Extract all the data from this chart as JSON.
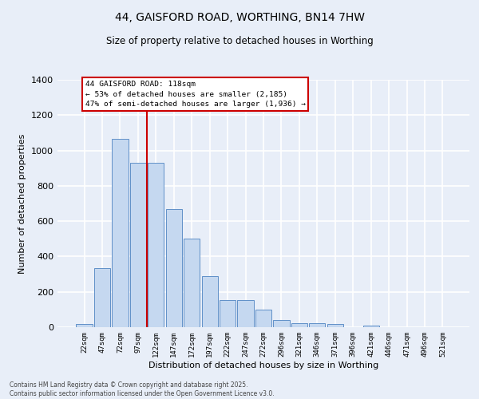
{
  "title_line1": "44, GAISFORD ROAD, WORTHING, BN14 7HW",
  "title_line2": "Size of property relative to detached houses in Worthing",
  "xlabel": "Distribution of detached houses by size in Worthing",
  "ylabel": "Number of detached properties",
  "categories": [
    "22sqm",
    "47sqm",
    "72sqm",
    "97sqm",
    "122sqm",
    "147sqm",
    "172sqm",
    "197sqm",
    "222sqm",
    "247sqm",
    "272sqm",
    "296sqm",
    "321sqm",
    "346sqm",
    "371sqm",
    "396sqm",
    "421sqm",
    "446sqm",
    "471sqm",
    "496sqm",
    "521sqm"
  ],
  "values": [
    18,
    335,
    1065,
    930,
    930,
    670,
    500,
    290,
    155,
    155,
    100,
    40,
    22,
    22,
    18,
    0,
    10,
    0,
    0,
    0,
    0
  ],
  "bar_color": "#c5d8f0",
  "bar_edge_color": "#6090c8",
  "background_color": "#e8eef8",
  "annotation_title": "44 GAISFORD ROAD: 118sqm",
  "annotation_line1": "← 53% of detached houses are smaller (2,185)",
  "annotation_line2": "47% of semi-detached houses are larger (1,936) →",
  "annotation_box_color": "#ffffff",
  "annotation_box_edge": "#cc0000",
  "red_line_bin": 4,
  "footer_line1": "Contains HM Land Registry data © Crown copyright and database right 2025.",
  "footer_line2": "Contains public sector information licensed under the Open Government Licence v3.0.",
  "ylim": [
    0,
    1400
  ],
  "yticks": [
    0,
    200,
    400,
    600,
    800,
    1000,
    1200,
    1400
  ]
}
